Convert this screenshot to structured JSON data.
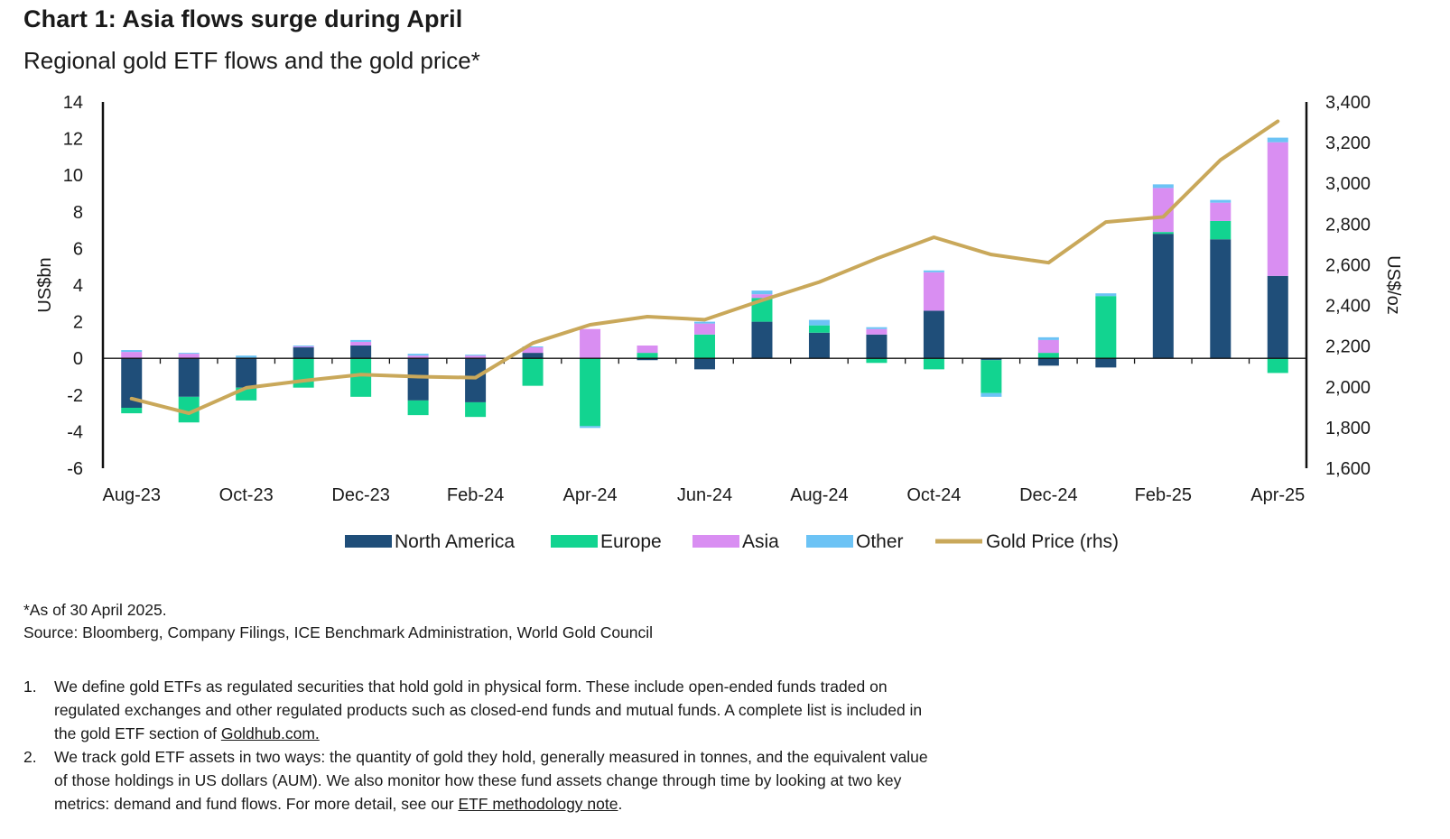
{
  "header": {
    "title": "Chart 1: Asia flows surge during April",
    "subtitle": "Regional gold ETF flows and the gold price*"
  },
  "chart_data": {
    "type": "bar",
    "stacked": true,
    "title": "Chart 1: Asia flows surge during April",
    "subtitle": "Regional gold ETF flows and the gold price*",
    "ylabel": "US$bn",
    "y2label": "US$/oz",
    "ylim": [
      -6,
      14
    ],
    "y2lim": [
      1600,
      3400
    ],
    "yticks": [
      "14",
      "12",
      "10",
      "8",
      "6",
      "4",
      "2",
      "0",
      "-2",
      "-4",
      "-6"
    ],
    "y2ticks": [
      "3,400",
      "3,200",
      "3,000",
      "2,800",
      "2,600",
      "2,400",
      "2,200",
      "2,000",
      "1,800",
      "1,600"
    ],
    "categories": [
      "Aug-23",
      "Sep-23",
      "Oct-23",
      "Nov-23",
      "Dec-23",
      "Jan-24",
      "Feb-24",
      "Mar-24",
      "Apr-24",
      "May-24",
      "Jun-24",
      "Jul-24",
      "Aug-24",
      "Sep-24",
      "Oct-24",
      "Nov-24",
      "Dec-24",
      "Jan-25",
      "Feb-25",
      "Mar-25",
      "Apr-25"
    ],
    "tick_labels": [
      "Aug-23",
      "Oct-23",
      "Dec-23",
      "Feb-24",
      "Apr-24",
      "Jun-24",
      "Aug-24",
      "Oct-24",
      "Dec-24",
      "Feb-25",
      "Apr-25"
    ],
    "series": [
      {
        "name": "North America",
        "color": "#1f4e79",
        "values": [
          -2.7,
          -2.1,
          -1.6,
          0.6,
          0.7,
          -2.3,
          -2.4,
          0.3,
          0.0,
          -0.1,
          -0.6,
          2.0,
          1.4,
          1.3,
          2.6,
          -0.1,
          -0.4,
          -0.5,
          6.8,
          6.5,
          4.5
        ]
      },
      {
        "name": "Europe",
        "color": "#12d490",
        "values": [
          -0.3,
          -1.4,
          -0.7,
          -1.6,
          -2.1,
          -0.8,
          -0.8,
          -1.5,
          -3.7,
          0.3,
          1.3,
          1.3,
          0.4,
          -0.25,
          -0.6,
          -1.8,
          0.3,
          3.4,
          0.1,
          1.0,
          -0.8
        ]
      },
      {
        "name": "Asia",
        "color": "#d98ef2",
        "values": [
          0.35,
          0.25,
          0.0,
          0.05,
          0.2,
          0.15,
          0.15,
          0.3,
          1.6,
          0.4,
          0.6,
          0.2,
          0.0,
          0.3,
          2.1,
          0.0,
          0.7,
          0.0,
          2.4,
          1.0,
          7.3
        ]
      },
      {
        "name": "Other",
        "color": "#6cc3f5",
        "values": [
          0.1,
          0.05,
          0.15,
          0.05,
          0.1,
          0.1,
          0.05,
          0.05,
          -0.1,
          0.0,
          0.1,
          0.2,
          0.3,
          0.1,
          0.1,
          -0.2,
          0.15,
          0.15,
          0.2,
          0.15,
          0.25
        ]
      }
    ],
    "line_series": {
      "name": "Gold Price (rhs)",
      "color": "#c9a85a",
      "axis": "right",
      "values": [
        1942,
        1870,
        1995,
        2030,
        2060,
        2050,
        2045,
        2215,
        2305,
        2345,
        2330,
        2425,
        2515,
        2630,
        2735,
        2650,
        2610,
        2810,
        2835,
        3115,
        3305
      ]
    },
    "legend": {
      "position": "bottom",
      "entries": [
        "North America",
        "Europe",
        "Asia",
        "Other",
        "Gold Price (rhs)"
      ]
    }
  },
  "footer": {
    "asof": "*As of 30 April 2025.",
    "source": "Source: Bloomberg, Company Filings, ICE Benchmark Administration, World Gold Council"
  },
  "notes": [
    {
      "num": "1.",
      "text": "We define gold ETFs as regulated securities that hold gold in physical form. These include open-ended funds traded on regulated exchanges and other regulated products such as closed-end funds and mutual funds. A complete list is included in the gold ETF section of ",
      "link": "Goldhub.com.",
      "after": ""
    },
    {
      "num": "2.",
      "text": "We track gold ETF assets in two ways: the quantity of gold they hold, generally measured in tonnes, and the equivalent value of those holdings in US dollars (AUM). We also monitor how these fund assets change through time by looking at two key metrics: demand and fund flows. For more detail, see our ",
      "link": "ETF methodology note",
      "after": "."
    }
  ]
}
